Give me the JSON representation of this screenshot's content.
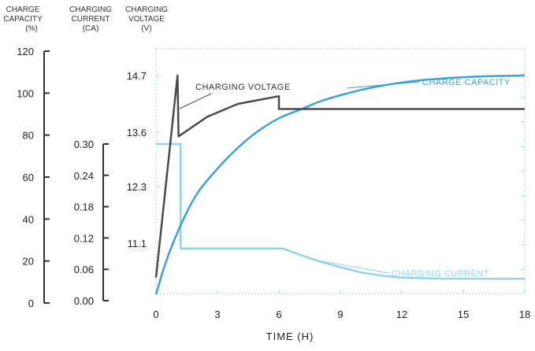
{
  "chart_data": {
    "type": "line",
    "xlabel": "TIME (H)",
    "x_axis": {
      "range": [
        0,
        18
      ],
      "ticks": [
        "0",
        "3",
        "6",
        "9",
        "12",
        "15",
        "18"
      ]
    },
    "axes": {
      "capacity": {
        "title_lines": [
          "CHARGE",
          "CAPACITY",
          "(%)"
        ],
        "range": [
          0,
          120
        ],
        "ticks": [
          "0",
          "20",
          "40",
          "60",
          "80",
          "100",
          "120"
        ]
      },
      "current": {
        "title_lines": [
          "CHARGING",
          "CURRENT",
          "(CA)"
        ],
        "range": [
          0,
          0.3
        ],
        "ticks": [
          "0.00",
          "0.06",
          "0.12",
          "0.18",
          "0.24",
          "0.30"
        ]
      },
      "voltage": {
        "title_lines": [
          "CHARGING",
          "VOLTAGE",
          "(V)"
        ],
        "ticks": [
          "11.1",
          "12.3",
          "13.6",
          "14.7"
        ]
      }
    },
    "series": [
      {
        "name": "CHARGE CAPACITY",
        "axis": "capacity",
        "color": "#3aa0d8",
        "points": [
          [
            0,
            4
          ],
          [
            0.5,
            20
          ],
          [
            1.2,
            37
          ],
          [
            2.0,
            52
          ],
          [
            3.0,
            64
          ],
          [
            4.0,
            74
          ],
          [
            5.0,
            82
          ],
          [
            6.0,
            88
          ],
          [
            7.0,
            92
          ],
          [
            8.0,
            96
          ],
          [
            9.0,
            99
          ],
          [
            10.0,
            101.5
          ],
          [
            11.0,
            103.5
          ],
          [
            12.0,
            105
          ],
          [
            13.0,
            106.2
          ],
          [
            14.0,
            107
          ],
          [
            15.0,
            107.6
          ],
          [
            16.0,
            108
          ],
          [
            17.0,
            108.2
          ],
          [
            18.0,
            108.4
          ]
        ]
      },
      {
        "name": "CHARGING VOLTAGE",
        "axis": "voltage",
        "color": "#4a4a4a",
        "points": [
          [
            0,
            10.35
          ],
          [
            1.05,
            14.7
          ],
          [
            1.1,
            13.5
          ],
          [
            2.5,
            13.9
          ],
          [
            4.0,
            14.15
          ],
          [
            6.0,
            14.3
          ],
          [
            6.0,
            14.05
          ],
          [
            18.0,
            14.05
          ]
        ]
      },
      {
        "name": "CHARGING CURRENT",
        "axis": "current",
        "color": "#8fd1ef",
        "points": [
          [
            0,
            0.3
          ],
          [
            1.2,
            0.3
          ],
          [
            1.2,
            0.1
          ],
          [
            6.2,
            0.1
          ],
          [
            7.0,
            0.088
          ],
          [
            8.0,
            0.075
          ],
          [
            9.0,
            0.064
          ],
          [
            10.0,
            0.054
          ],
          [
            11.0,
            0.048
          ],
          [
            12.0,
            0.044
          ],
          [
            14.0,
            0.042
          ],
          [
            18.0,
            0.042
          ]
        ]
      }
    ],
    "annotations": [
      {
        "text": "CHARGING VOLTAGE",
        "series": "CHARGING VOLTAGE"
      },
      {
        "text": "CHARGE CAPACITY",
        "series": "CHARGE CAPACITY"
      },
      {
        "text": "CHARGING CURRENT",
        "series": "CHARGING CURRENT"
      }
    ],
    "grid": false
  }
}
